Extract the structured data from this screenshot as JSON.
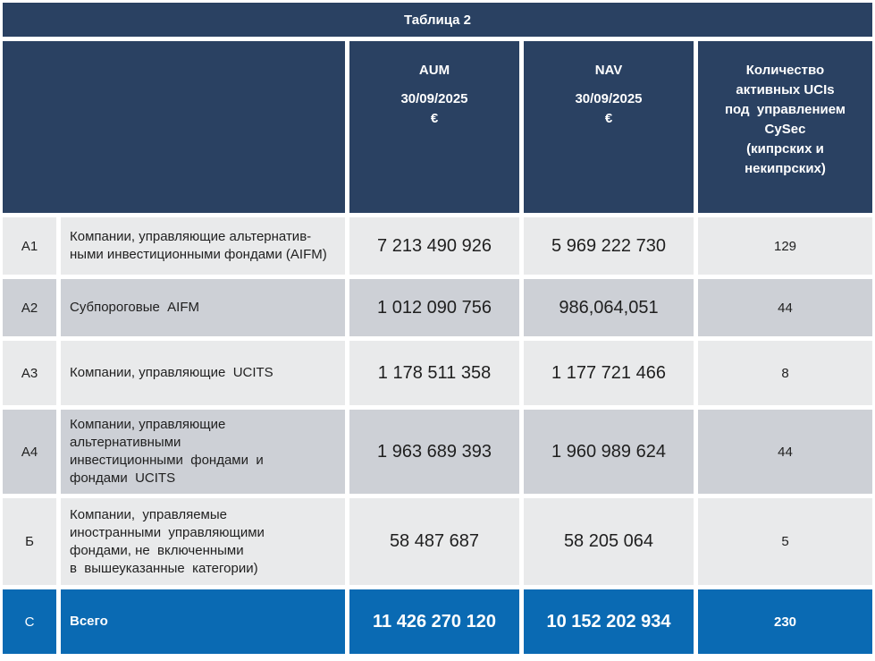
{
  "title": "Таблица 2",
  "colors": {
    "header_navy": "#2a4162",
    "total_blue": "#0a6ab3",
    "row_light": "#e9eaeb",
    "row_dark": "#cdd0d6",
    "grid_white": "#ffffff",
    "body_text": "#1f1f1f"
  },
  "header": {
    "aum": {
      "line1": "AUM",
      "line2": "30/09/2025",
      "line3": "€"
    },
    "nav": {
      "line1": "NAV",
      "line2": "30/09/2025",
      "line3": "€"
    },
    "count": "Количество\nактивных UCIs\nпод  управлением\nCySec\n(кипрских и\nнекипрских)"
  },
  "rows": [
    {
      "label": "A1",
      "description": "Компании, управляющие альтернатив-\nными инвестиционными фондами (AIFM)",
      "aum": "7 213 490 926",
      "nav": "5 969 222 730",
      "count": "129"
    },
    {
      "label": "A2",
      "description": "Субпороговые  AIFM",
      "aum": "1 012 090 756",
      "nav": "986,064,051",
      "count": "44"
    },
    {
      "label": "A3",
      "description": "Компании, управляющие  UCITS",
      "aum": "1 178 511 358",
      "nav": "1 177 721 466",
      "count": "8"
    },
    {
      "label": "A4",
      "description": "Компании, управляющие\nальтернативными\nинвестиционными  фондами  и\nфондами  UCITS",
      "aum": "1 963 689 393",
      "nav": "1 960 989 624",
      "count": "44"
    },
    {
      "label": "Б",
      "description": "Компании,  управляемые\nиностранными  управляющими\nфондами, не  включенными\nв  вышеуказанные  категории)",
      "aum": "58 487 687",
      "nav": "58 205 064",
      "count": "5"
    },
    {
      "label": "C",
      "description": "Всего",
      "aum": "11 426 270 120",
      "nav": "10 152 202 934",
      "count": "230"
    }
  ]
}
